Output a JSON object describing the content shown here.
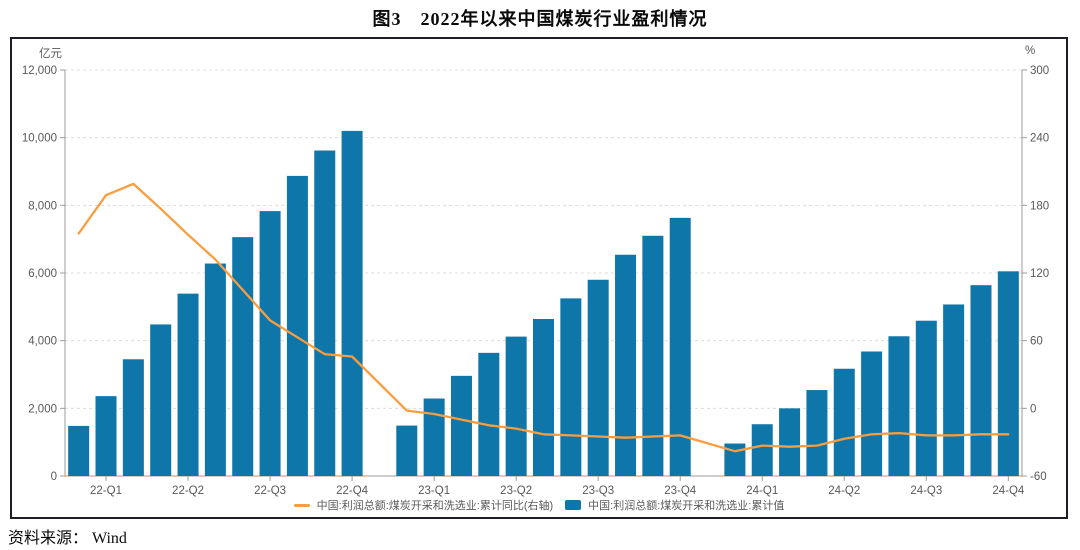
{
  "title": "图3　2022年以来中国煤炭行业盈利情况",
  "source_note": "资料来源： Wind",
  "legend": {
    "line_label": "中国:利润总额:煤炭开采和洗选业:累计同比(右轴)",
    "bar_label": "中国:利润总额:煤炭开采和洗选业:累计值"
  },
  "colors": {
    "bar": "#0E76A8",
    "line": "#F99D3E",
    "grid": "#DCDCDC",
    "axis": "#9B9B9B",
    "text": "#595959",
    "border": "#1D1D29"
  },
  "chart_data": {
    "type": "bar",
    "x": [
      "22-02",
      "22-03",
      "22-04",
      "22-05",
      "22-06",
      "22-07",
      "22-08",
      "22-09",
      "22-10",
      "22-11",
      "22-12",
      "23-02",
      "23-03",
      "23-04",
      "23-05",
      "23-06",
      "23-07",
      "23-08",
      "23-09",
      "23-10",
      "23-11",
      "23-12",
      "24-02",
      "24-03",
      "24-04",
      "24-05",
      "24-06",
      "24-07",
      "24-08",
      "24-09",
      "24-10",
      "24-11",
      "24-12"
    ],
    "x_tick_labels": [
      "22-Q1",
      "22-Q2",
      "22-Q3",
      "22-Q4",
      "23-Q1",
      "23-Q2",
      "23-Q3",
      "23-Q4",
      "24-Q1",
      "24-Q2",
      "24-Q3",
      "24-Q4"
    ],
    "x_tick_months": [
      "22-03",
      "22-06",
      "22-09",
      "22-12",
      "23-03",
      "23-06",
      "23-09",
      "23-12",
      "24-03",
      "24-06",
      "24-09",
      "24-12"
    ],
    "left_axis": {
      "unit": "亿元",
      "min": 0,
      "max": 12000,
      "ticks": [
        "0",
        "2,000",
        "4,000",
        "6,000",
        "8,000",
        "10,000",
        "12,000"
      ]
    },
    "right_axis": {
      "unit": "%",
      "min": -60,
      "max": 300,
      "ticks": [
        "-60",
        "0",
        "60",
        "120",
        "180",
        "240",
        "300"
      ]
    },
    "grid": true,
    "legend_position": "bottom",
    "series": [
      {
        "name": "中国:利润总额:煤炭开采和洗选业:累计值",
        "type": "bar",
        "axis": "left",
        "values": [
          1480,
          2360,
          3450,
          4480,
          5390,
          6280,
          7060,
          7830,
          8870,
          9620,
          10200,
          1490,
          2290,
          2960,
          3640,
          4120,
          4640,
          5250,
          5800,
          6540,
          7100,
          7630,
          960,
          1530,
          2000,
          2540,
          3170,
          3680,
          4130,
          4590,
          5070,
          5640,
          6050
        ]
      },
      {
        "name": "中国:利润总额:煤炭开采和洗选业:累计同比(右轴)",
        "type": "line",
        "axis": "right",
        "values": [
          155,
          189,
          199,
          177,
          154,
          132,
          105,
          78,
          63,
          48,
          46,
          -2,
          -5,
          -10,
          -15,
          -18,
          -23,
          -24,
          -25,
          -26,
          -25,
          -24,
          -38,
          -33,
          -34,
          -33,
          -27,
          -23,
          -22,
          -24,
          -24,
          -23,
          -23
        ]
      }
    ]
  }
}
